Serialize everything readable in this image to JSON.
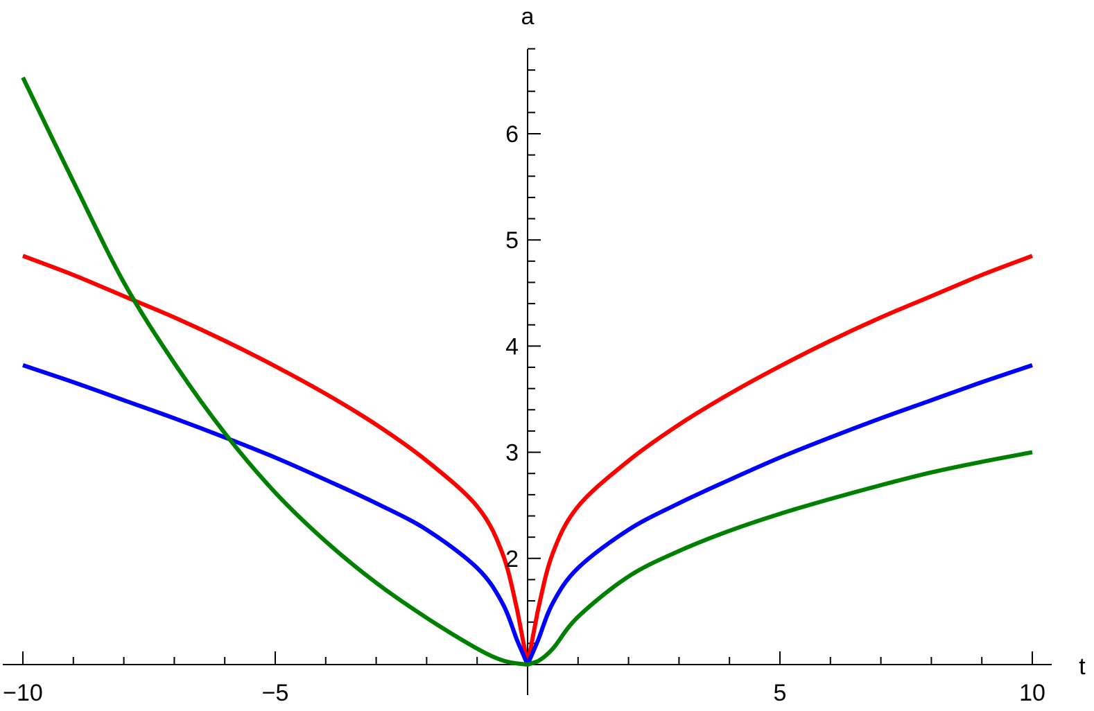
{
  "chart_data": {
    "type": "line",
    "title": "",
    "xlabel": "t",
    "ylabel": "a",
    "xlim": [
      -10,
      10
    ],
    "ylim": [
      1,
      6.8
    ],
    "x_ticks": [
      -10,
      -5,
      5,
      10
    ],
    "x_tick_labels": [
      "−10",
      "−5",
      "5",
      "10"
    ],
    "x_minor_step": 1,
    "y_ticks": [
      2,
      3,
      4,
      5,
      6
    ],
    "y_tick_labels": [
      "2",
      "3",
      "4",
      "5",
      "6"
    ],
    "y_minor_step": 0.2,
    "grid": false,
    "legend": "none",
    "x": [
      -10,
      -9,
      -8,
      -7,
      -6,
      -5,
      -4,
      -3,
      -2,
      -1,
      -0.5,
      -0.2,
      0,
      0.2,
      0.5,
      1,
      2,
      3,
      4,
      5,
      6,
      7,
      8,
      9,
      10
    ],
    "series": [
      {
        "color": "#ff0000",
        "values": [
          4.85,
          4.67,
          4.47,
          4.27,
          4.05,
          3.81,
          3.55,
          3.26,
          2.92,
          2.49,
          2.05,
          1.5,
          1.0,
          1.5,
          2.05,
          2.49,
          2.92,
          3.26,
          3.55,
          3.81,
          4.05,
          4.27,
          4.47,
          4.67,
          4.85
        ]
      },
      {
        "color": "#0000ff",
        "values": [
          3.82,
          3.66,
          3.49,
          3.32,
          3.14,
          2.95,
          2.74,
          2.52,
          2.27,
          1.91,
          1.58,
          1.22,
          1.0,
          1.22,
          1.58,
          1.91,
          2.27,
          2.52,
          2.74,
          2.95,
          3.14,
          3.32,
          3.49,
          3.66,
          3.82
        ]
      },
      {
        "color": "#008000",
        "values": [
          6.53,
          5.55,
          4.6,
          3.84,
          3.18,
          2.62,
          2.16,
          1.77,
          1.44,
          1.15,
          1.04,
          1.01,
          1.0,
          1.03,
          1.15,
          1.45,
          1.83,
          2.07,
          2.26,
          2.42,
          2.56,
          2.69,
          2.81,
          2.91,
          3.0
        ]
      }
    ]
  }
}
